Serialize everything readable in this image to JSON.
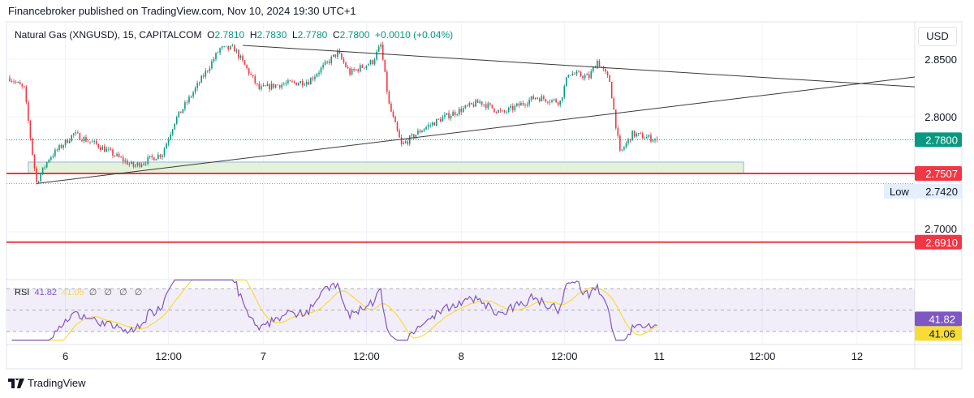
{
  "header": {
    "published": "Financebroker published on TradingView.com, Nov 10, 2024 19:30 UTC+1"
  },
  "legend": {
    "symbol": "Natural Gas (XNGUSD), 15, CAPITALCOM",
    "o_label": "O",
    "o": "2.7810",
    "h_label": "H",
    "h": "2.7830",
    "l_label": "L",
    "l": "2.7780",
    "c_label": "C",
    "c": "2.7800",
    "change": "+0.0010 (+0.04%)"
  },
  "currency": "USD",
  "rsi_legend": {
    "name": "RSI",
    "rsi": "41.82",
    "ma": "41.06",
    "extras": "∅ ∅ ∅ ∅"
  },
  "price_axis": {
    "ticks": [
      "2.8500",
      "2.8000",
      "2.7000"
    ],
    "tick_values": [
      2.85,
      2.8,
      2.7
    ],
    "last": "2.7800",
    "level1": "2.7507",
    "low_label": "Low",
    "low": "2.7420",
    "level2": "2.6910",
    "rsi_label": "41.82",
    "rsi_ma_label": "41.06"
  },
  "time_axis": {
    "ticks": [
      {
        "label": "6",
        "bar": 27
      },
      {
        "label": "12:00",
        "bar": 77
      },
      {
        "label": "7",
        "bar": 123
      },
      {
        "label": "12:00",
        "bar": 173
      },
      {
        "label": "8",
        "bar": 219
      },
      {
        "label": "12:00",
        "bar": 269
      },
      {
        "label": "11",
        "bar": 315
      },
      {
        "label": "12:00",
        "bar": 365
      },
      {
        "label": "12",
        "bar": 411
      }
    ]
  },
  "brand": "TradingView",
  "colors": {
    "up": "#089981",
    "down": "#f23645",
    "rsi": "#7e57c2",
    "rsi_ma": "#f7dc36",
    "level": "#f23645",
    "zone": "#e3f2d9",
    "line": "#3a3a3a"
  },
  "chart_data": {
    "type": "candlestick",
    "title": "Natural Gas (XNGUSD), 15, CAPITALCOM",
    "ylim": [
      2.668,
      2.885
    ],
    "close_keypoints": [
      [
        0,
        2.834
      ],
      [
        7,
        2.824
      ],
      [
        11,
        2.768
      ],
      [
        13,
        2.743
      ],
      [
        19,
        2.764
      ],
      [
        31,
        2.785
      ],
      [
        43,
        2.775
      ],
      [
        60,
        2.757
      ],
      [
        74,
        2.768
      ],
      [
        80,
        2.796
      ],
      [
        90,
        2.824
      ],
      [
        102,
        2.859
      ],
      [
        109,
        2.859
      ],
      [
        121,
        2.824
      ],
      [
        129,
        2.8275
      ],
      [
        145,
        2.831
      ],
      [
        159,
        2.8556
      ],
      [
        165,
        2.838
      ],
      [
        176,
        2.848
      ],
      [
        180,
        2.862
      ],
      [
        184,
        2.81
      ],
      [
        190,
        2.775
      ],
      [
        200,
        2.789
      ],
      [
        210,
        2.799
      ],
      [
        228,
        2.813
      ],
      [
        239,
        2.803
      ],
      [
        255,
        2.817
      ],
      [
        267,
        2.813
      ],
      [
        271,
        2.838
      ],
      [
        281,
        2.8345
      ],
      [
        285,
        2.8486
      ],
      [
        291,
        2.831
      ],
      [
        296,
        2.768
      ],
      [
        302,
        2.785
      ],
      [
        314,
        2.78
      ]
    ],
    "last_ohlc": {
      "open": 2.781,
      "high": 2.783,
      "low": 2.778,
      "close": 2.78
    },
    "horizontal_levels": [
      2.7507,
      2.691
    ],
    "dotted_levels": [
      2.78,
      2.742
    ],
    "trendlines": [
      {
        "from": [
          113,
          2.862
        ],
        "to": [
          439,
          2.826
        ]
      },
      {
        "from": [
          13,
          2.742
        ],
        "to": [
          439,
          2.8345
        ]
      }
    ],
    "zone": {
      "from_bar": 9,
      "to_bar": 356,
      "low": 2.7507,
      "high": 2.7606
    },
    "rsi": {
      "period": 14,
      "ma_period": 14,
      "upper": 70,
      "lower": 30,
      "last": 41.82,
      "ma_last": 41.06
    }
  }
}
